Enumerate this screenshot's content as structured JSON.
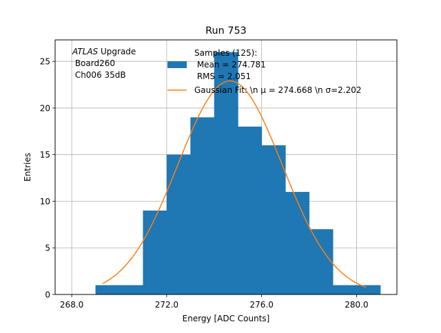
{
  "chart_data": {
    "type": "bar",
    "title": "Run 753",
    "xlabel": "Energy [ADC Counts]",
    "ylabel": "Entries",
    "xlim": [
      267.3,
      281.7
    ],
    "ylim": [
      0,
      27.3
    ],
    "xticks": [
      268.0,
      272.0,
      276.0,
      280.0
    ],
    "xtick_labels": [
      "268.0",
      "272.0",
      "276.0",
      "280.0"
    ],
    "yticks": [
      0,
      5,
      10,
      15,
      20,
      25
    ],
    "ytick_labels": [
      "0",
      "5",
      "10",
      "15",
      "20",
      "25"
    ],
    "grid": true,
    "histogram": {
      "bins": [
        {
          "x0": 269.0,
          "x1": 270.0,
          "count": 1
        },
        {
          "x0": 270.0,
          "x1": 271.0,
          "count": 1
        },
        {
          "x0": 271.0,
          "x1": 272.0,
          "count": 9
        },
        {
          "x0": 272.0,
          "x1": 273.0,
          "count": 15
        },
        {
          "x0": 273.0,
          "x1": 274.0,
          "count": 19
        },
        {
          "x0": 274.0,
          "x1": 275.0,
          "count": 26
        },
        {
          "x0": 275.0,
          "x1": 276.0,
          "count": 18
        },
        {
          "x0": 276.0,
          "x1": 277.0,
          "count": 16
        },
        {
          "x0": 277.0,
          "x1": 278.0,
          "count": 11
        },
        {
          "x0": 278.0,
          "x1": 279.0,
          "count": 7
        },
        {
          "x0": 279.0,
          "x1": 280.0,
          "count": 1
        },
        {
          "x0": 280.0,
          "x1": 281.0,
          "count": 1
        }
      ],
      "color": "#1f77b4"
    },
    "gaussian_fit": {
      "mu": 274.668,
      "sigma": 2.202,
      "amplitude": 22.9,
      "x_range": [
        269.3,
        280.4
      ],
      "color": "#ff7f0e"
    },
    "annotation": {
      "italic": "ATLAS",
      "rest": " Upgrade",
      "line2": " Board260",
      "line3": " Ch006 35dB"
    },
    "legend": {
      "placement": "top-right",
      "entries": [
        {
          "line1": "Samples (125):",
          "line2": " Mean = 274.781",
          "line3": " RMS = 2.051",
          "kind": "patch",
          "color": "#1f77b4"
        },
        {
          "label": "Gaussian Fit: \\n μ = 274.668 \\n σ=2.202",
          "kind": "line",
          "color": "#ff7f0e"
        }
      ]
    }
  }
}
